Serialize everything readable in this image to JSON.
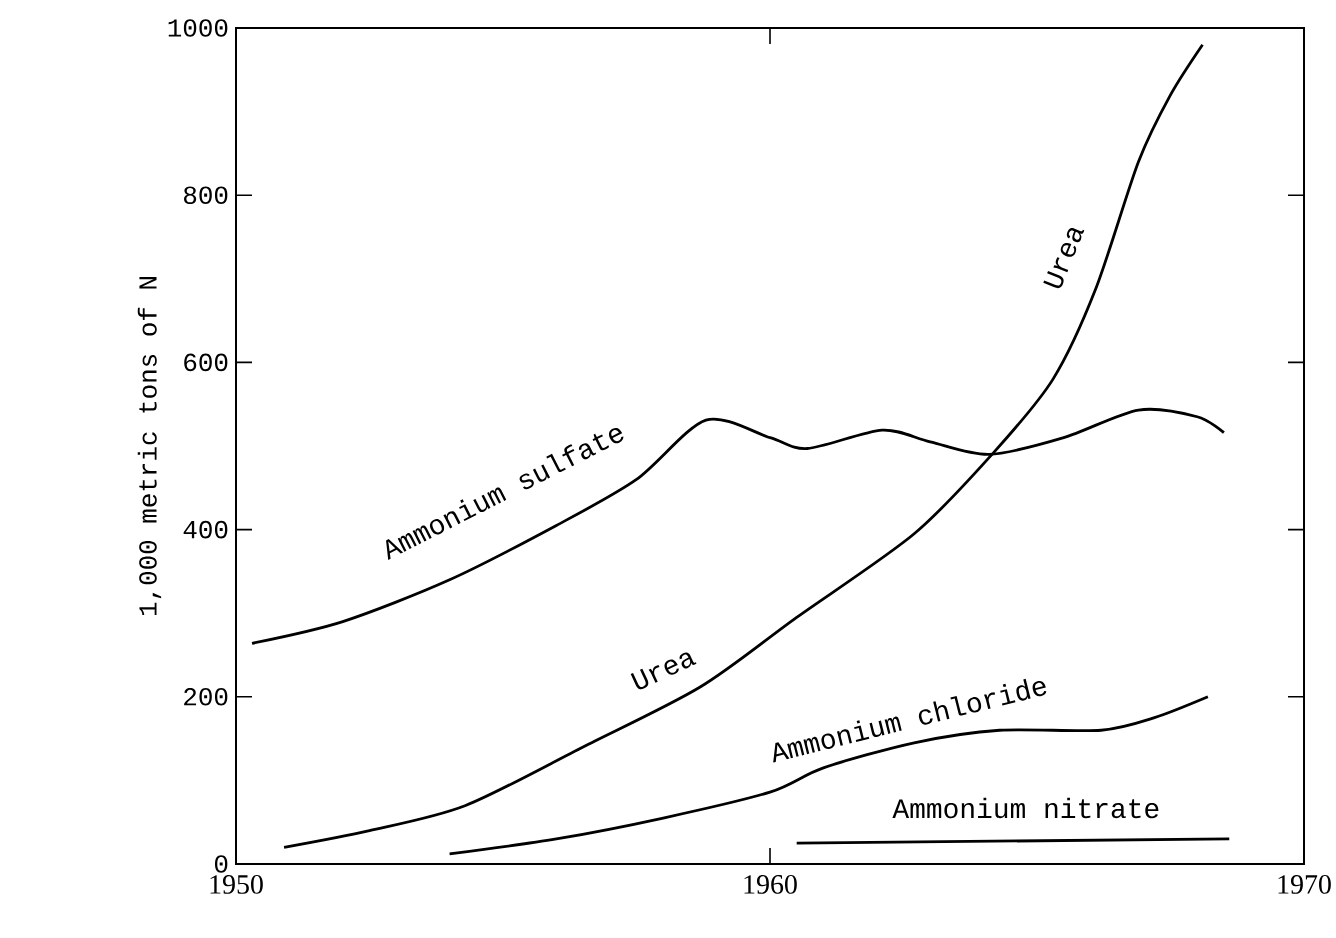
{
  "chart_data": {
    "type": "line",
    "ylabel": "1,000 metric tons of N",
    "xlim": [
      1950,
      1970
    ],
    "ylim": [
      0,
      1000
    ],
    "xticks": [
      1950,
      1960,
      1970
    ],
    "yticks": [
      0,
      200,
      400,
      600,
      800,
      1000
    ],
    "grid": false,
    "series": [
      {
        "name": "Ammonium sulfate",
        "color": "#000000",
        "x": [
          1950.3,
          1952,
          1954,
          1956,
          1957.5,
          1958.8,
          1960,
          1960.7,
          1962.1,
          1963,
          1964.1,
          1965.5,
          1966.9,
          1968,
          1968.5
        ],
        "values": [
          264,
          290,
          340,
          405,
          460,
          531,
          510,
          497,
          519,
          505,
          490,
          510,
          543,
          535,
          516
        ]
      },
      {
        "name": "Urea",
        "color": "#000000",
        "x": [
          1950.9,
          1952.5,
          1954.3,
          1956.5,
          1958.7,
          1960.5,
          1962.7,
          1964.2,
          1965.3,
          1966.1,
          1966.9,
          1967.5,
          1968.1
        ],
        "values": [
          20,
          40,
          70,
          140,
          212,
          295,
          395,
          493,
          580,
          688,
          840,
          920,
          980
        ]
      },
      {
        "name": "Ammonium chloride",
        "color": "#000000",
        "x": [
          1954,
          1956,
          1958,
          1960,
          1961,
          1962.7,
          1964.3,
          1966.2,
          1967.2,
          1968.2
        ],
        "values": [
          12,
          30,
          55,
          86,
          115,
          145,
          160,
          160,
          175,
          200
        ]
      },
      {
        "name": "Ammonium nitrate",
        "color": "#000000",
        "x": [
          1960.5,
          1968.6
        ],
        "values": [
          25,
          30
        ]
      }
    ]
  }
}
